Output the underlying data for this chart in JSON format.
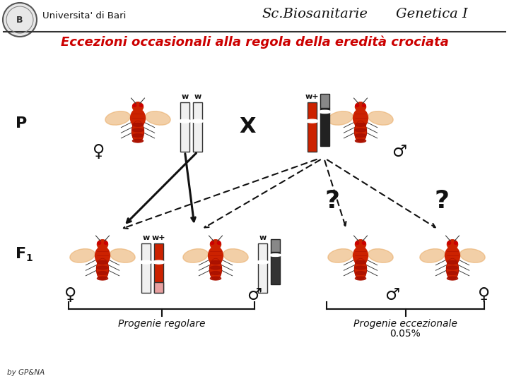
{
  "title_institution": "Universita' di Bari",
  "title_course": "Sc.Biosanitarie   Genetica I",
  "subtitle": "Eccezioni occasionali alla regola della eredità crociata",
  "subtitle_color": "#cc0000",
  "background_color": "#ffffff",
  "label_P": "P",
  "label_F1": "F",
  "label_X": "X",
  "label_q1": "?",
  "label_q2": "?",
  "label_prog_reg": "Progenie regolare",
  "label_prog_ecc": "Progenie eccezionale",
  "label_005": "0.05%",
  "label_by": "by GP&NA",
  "female_symbol": "♀",
  "male_symbol": "♂",
  "w_label": "w",
  "wplus_label": "w+",
  "fly_body_color": "#cc2200",
  "fly_wing_color": "#e8a860",
  "fly_detail_color": "#aa1100",
  "chr_white_color": "#f0f0f0",
  "chr_red_color": "#cc2200",
  "chr_pink_color": "#e8a0a0",
  "chr_dark_color": "#333333",
  "chr_gray_color": "#808080",
  "figsize": [
    7.2,
    5.4
  ],
  "dpi": 100
}
